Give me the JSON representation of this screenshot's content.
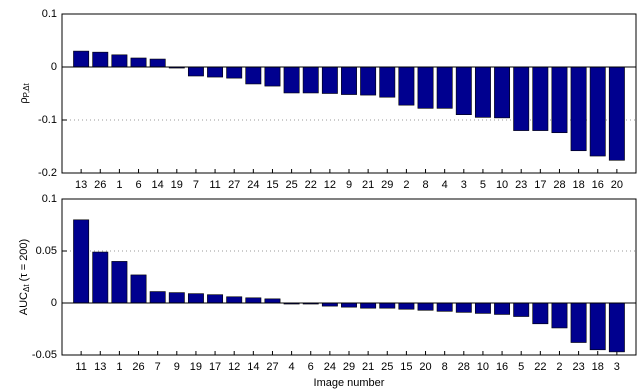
{
  "chart_data": [
    {
      "type": "bar",
      "ylabel": "ρ",
      "ylabel_sub": "P,Δt",
      "categories": [
        "13",
        "26",
        "1",
        "6",
        "14",
        "19",
        "7",
        "11",
        "27",
        "24",
        "15",
        "25",
        "22",
        "12",
        "9",
        "21",
        "29",
        "2",
        "8",
        "4",
        "3",
        "5",
        "10",
        "23",
        "17",
        "28",
        "18",
        "16",
        "20"
      ],
      "values": [
        0.03,
        0.028,
        0.023,
        0.017,
        0.015,
        -0.002,
        -0.017,
        -0.019,
        -0.021,
        -0.032,
        -0.036,
        -0.049,
        -0.049,
        -0.05,
        -0.052,
        -0.053,
        -0.057,
        -0.072,
        -0.078,
        -0.078,
        -0.09,
        -0.095,
        -0.096,
        -0.12,
        -0.12,
        -0.124,
        -0.158,
        -0.168,
        -0.176
      ],
      "color": "#00008f",
      "ylim": [
        -0.2,
        0.1
      ],
      "yticks": [
        -0.2,
        -0.1,
        0,
        0.1
      ],
      "grid": true
    },
    {
      "type": "bar",
      "ylabel": "AUC",
      "ylabel_sub": "Δt",
      "ylabel_suffix": " (τ = 200)",
      "xlabel": "Image number",
      "categories": [
        "11",
        "13",
        "1",
        "26",
        "7",
        "9",
        "19",
        "17",
        "12",
        "14",
        "27",
        "4",
        "6",
        "24",
        "29",
        "21",
        "25",
        "15",
        "20",
        "8",
        "28",
        "10",
        "16",
        "5",
        "22",
        "2",
        "23",
        "18",
        "3"
      ],
      "values": [
        0.08,
        0.049,
        0.04,
        0.027,
        0.011,
        0.01,
        0.009,
        0.008,
        0.006,
        0.005,
        0.004,
        -0.001,
        -0.001,
        -0.003,
        -0.004,
        -0.005,
        -0.005,
        -0.006,
        -0.007,
        -0.008,
        -0.009,
        -0.01,
        -0.011,
        -0.013,
        -0.02,
        -0.024,
        -0.038,
        -0.045,
        -0.047
      ],
      "color": "#00008f",
      "ylim": [
        -0.05,
        0.1
      ],
      "yticks": [
        -0.05,
        0,
        0.05,
        0.1
      ],
      "grid": true
    }
  ]
}
